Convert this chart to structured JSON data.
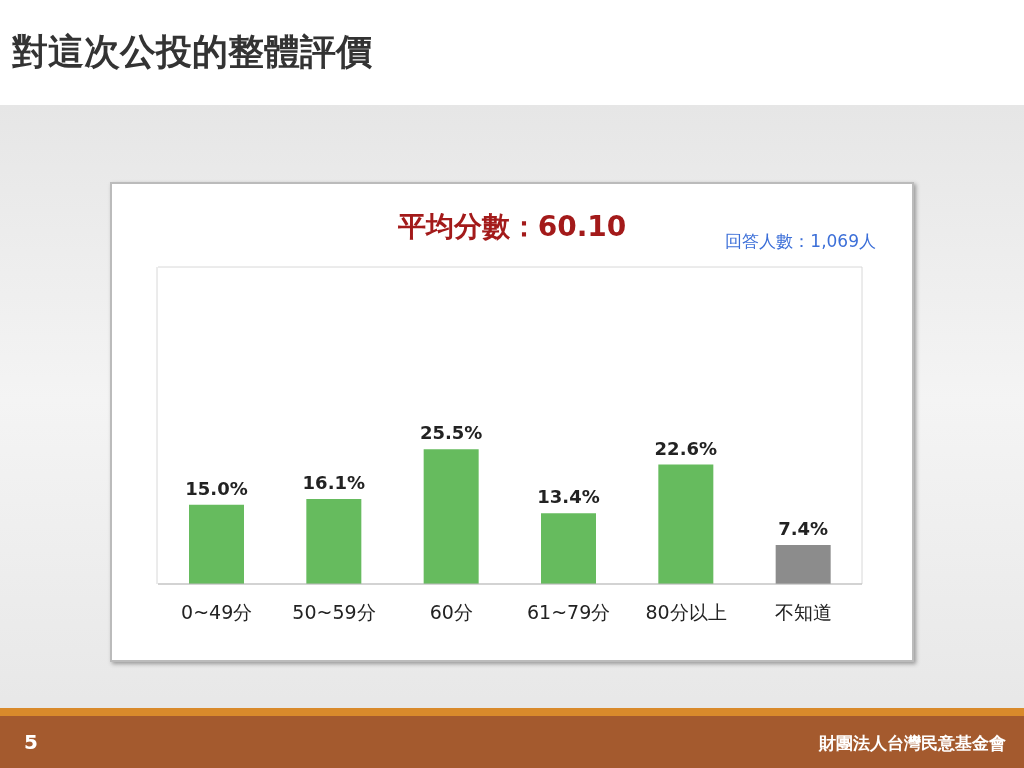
{
  "chart_data": {
    "type": "bar",
    "title": "對這次公投的整體評價",
    "subtitle": "平均分數：60.10",
    "annotations": [
      "回答人數：1,069人",
      "財團法人台灣民意基金會",
      "5"
    ],
    "categories": [
      "0~49分",
      "50~59分",
      "60分",
      "61~79分",
      "80分以上",
      "不知道"
    ],
    "values": [
      15.0,
      16.1,
      25.5,
      13.4,
      22.6,
      7.4
    ],
    "value_labels": [
      "15.0%",
      "16.1%",
      "25.5%",
      "13.4%",
      "22.6%",
      "7.4%"
    ],
    "colors": [
      "#66bb5e",
      "#66bb5e",
      "#66bb5e",
      "#66bb5e",
      "#66bb5e",
      "#8c8c8c"
    ],
    "ylim": [
      0,
      60
    ],
    "grid": "y",
    "tick_labels": "x"
  }
}
